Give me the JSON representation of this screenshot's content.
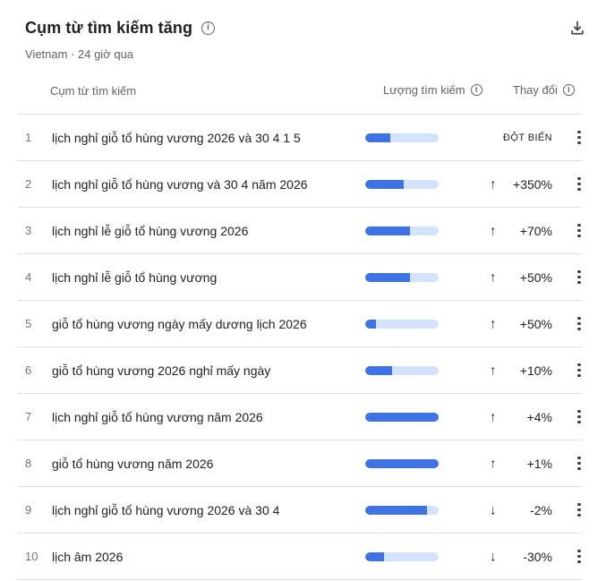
{
  "header": {
    "title": "Cụm từ tìm kiếm tăng",
    "location_time": "Vietnam · 24 giờ qua"
  },
  "table": {
    "columns": {
      "term": "Cụm từ tìm kiếm",
      "volume": "Lượng tìm kiếm",
      "change": "Thay đổi"
    }
  },
  "icons": {
    "info": "i",
    "download": "download-icon",
    "up_arrow": "↑",
    "down_arrow": "↓",
    "more": "kebab-menu"
  },
  "colors": {
    "bar_fill": "#3D73E6",
    "bar_track": "#D3E3FD",
    "text_primary": "#202124",
    "text_secondary": "#5F6368"
  },
  "rows": [
    {
      "rank": "1",
      "term": "lịch nghỉ giỗ tổ hùng vương 2026 và 30 4 1 5",
      "volume_pct": 34,
      "arrow": "",
      "change": "ĐỘT BIẾN",
      "direction": "breakout"
    },
    {
      "rank": "2",
      "term": "lịch nghỉ giỗ tổ hùng vương và 30 4 năm 2026",
      "volume_pct": 52,
      "arrow": "↑",
      "change": "+350%",
      "direction": "up"
    },
    {
      "rank": "3",
      "term": "lịch nghỉ lễ giỗ tổ hùng vương 2026",
      "volume_pct": 61,
      "arrow": "↑",
      "change": "+70%",
      "direction": "up"
    },
    {
      "rank": "4",
      "term": "lịch nghỉ lễ giỗ tổ hùng vương",
      "volume_pct": 61,
      "arrow": "↑",
      "change": "+50%",
      "direction": "up"
    },
    {
      "rank": "5",
      "term": "giỗ tổ hùng vương ngày mấy dương lịch 2026",
      "volume_pct": 15,
      "arrow": "↑",
      "change": "+50%",
      "direction": "up"
    },
    {
      "rank": "6",
      "term": "giỗ tổ hùng vương 2026 nghỉ mấy ngày",
      "volume_pct": 36,
      "arrow": "↑",
      "change": "+10%",
      "direction": "up"
    },
    {
      "rank": "7",
      "term": "lịch nghỉ giỗ tổ hùng vương năm 2026",
      "volume_pct": 100,
      "arrow": "↑",
      "change": "+4%",
      "direction": "up"
    },
    {
      "rank": "8",
      "term": "giỗ tổ hùng vương năm 2026",
      "volume_pct": 100,
      "arrow": "↑",
      "change": "+1%",
      "direction": "up"
    },
    {
      "rank": "9",
      "term": "lịch nghỉ giỗ tổ hùng vương 2026 và 30 4",
      "volume_pct": 84,
      "arrow": "↓",
      "change": "-2%",
      "direction": "down"
    },
    {
      "rank": "10",
      "term": "lịch âm 2026",
      "volume_pct": 26,
      "arrow": "↓",
      "change": "-30%",
      "direction": "down"
    }
  ],
  "chart_data": {
    "type": "bar",
    "orientation": "horizontal",
    "title": "Cụm từ tìm kiếm tăng — Lượng tìm kiếm",
    "categories": [
      "lịch nghỉ giỗ tổ hùng vương 2026 và 30 4 1 5",
      "lịch nghỉ giỗ tổ hùng vương và 30 4 năm 2026",
      "lịch nghỉ lễ giỗ tổ hùng vương 2026",
      "lịch nghỉ lễ giỗ tổ hùng vương",
      "giỗ tổ hùng vương ngày mấy dương lịch 2026",
      "giỗ tổ hùng vương 2026 nghỉ mấy ngày",
      "lịch nghỉ giỗ tổ hùng vương năm 2026",
      "giỗ tổ hùng vương năm 2026",
      "lịch nghỉ giỗ tổ hùng vương 2026 và 30 4",
      "lịch âm 2026"
    ],
    "values": [
      34,
      52,
      61,
      61,
      15,
      36,
      100,
      100,
      84,
      26
    ],
    "value_unit": "percent of max bar",
    "changes": [
      "ĐỘT BIẾN",
      "+350%",
      "+70%",
      "+50%",
      "+50%",
      "+10%",
      "+4%",
      "+1%",
      "-2%",
      "-30%"
    ],
    "xlim": [
      0,
      100
    ],
    "grid": false,
    "legend": false
  }
}
